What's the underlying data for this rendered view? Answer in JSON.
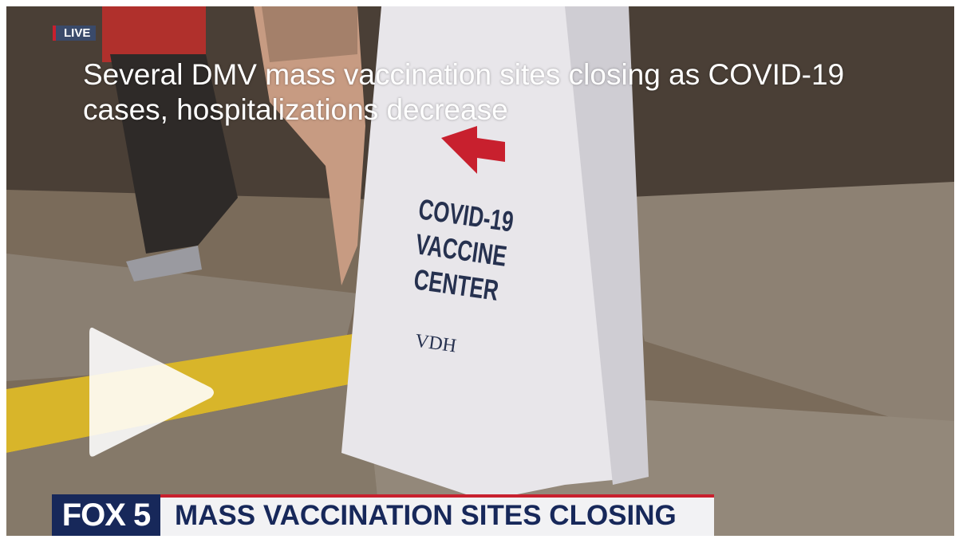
{
  "player": {
    "live_badge": "LIVE",
    "headline": "Several DMV mass vaccination sites closing as COVID-19 cases, hospitalizations decrease",
    "sign": {
      "title": "COVID-19 VACCINE CENTER",
      "logo_text": "VDH"
    },
    "channel": "FOX 5",
    "chyron": "MASS VACCINATION SITES CLOSING"
  }
}
